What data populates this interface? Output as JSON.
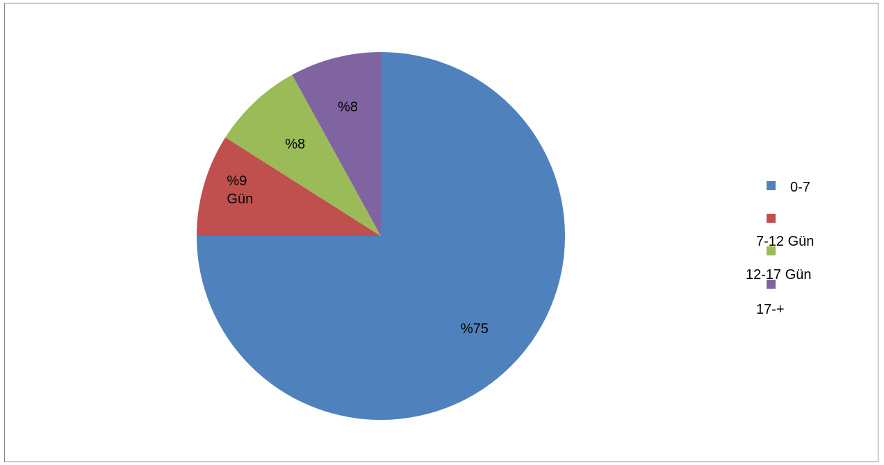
{
  "chart_data": {
    "type": "pie",
    "categories": [
      "0-7",
      "7-12 Gün",
      "12-17 Gün",
      "17-+"
    ],
    "values": [
      75,
      9,
      8,
      8
    ],
    "slice_labels": [
      "%75",
      "%9 Gün",
      "%8",
      "%8"
    ],
    "colors": [
      "#4F81BD",
      "#C0504D",
      "#9BBB59",
      "#8064A2"
    ],
    "legend_position": "right",
    "start_angle": "12 o'clock",
    "direction": "clockwise"
  }
}
